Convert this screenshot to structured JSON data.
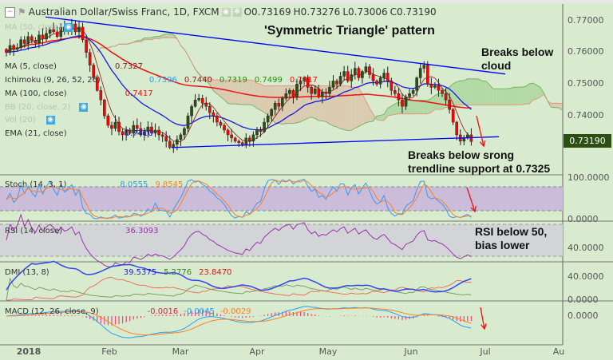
{
  "header": {
    "symbol": "Australian Dollar/Swiss Franc, 1D, FXCM",
    "open": "O0.73169",
    "high": "H0.73276",
    "low": "L0.73006",
    "close": "C0.73190"
  },
  "legends": {
    "ma50": "MA (50, close)",
    "ma5": {
      "label": "MA (5, close)",
      "value": "0.7327"
    },
    "ichimoku": {
      "label": "Ichimoku (9, 26, 52, 26)",
      "values": [
        "0.7396",
        "0.7440",
        "0.7319",
        "0.7499",
        "0.7417"
      ]
    },
    "ma100": {
      "label": "MA (100, close)",
      "value": "0.7417"
    },
    "bb": "BB (20, close, 2)",
    "vol": "Vol (20)",
    "ema21": {
      "label": "EMA (21, close)",
      "value": "0.7410"
    },
    "stoch": {
      "label": "Stoch (14, 3, 1)",
      "values": [
        "8.0555",
        "9.8545"
      ]
    },
    "rsi": {
      "label": "RSI (14, close)",
      "value": "36.3093"
    },
    "dmi": {
      "label": "DMI (13, 8)",
      "values": [
        "39.5375",
        "5.2776",
        "23.8470"
      ]
    },
    "macd": {
      "label": "MACD (12, 26, close, 9)",
      "values": [
        "-0.0016",
        "-0.0045",
        "-0.0029"
      ]
    }
  },
  "annotations": {
    "title": "'Symmetric Triangle' pattern",
    "cloud": [
      "Breaks below",
      "cloud"
    ],
    "trendline": [
      "Breaks below srong",
      "trendline support at 0.7325"
    ],
    "rsi": [
      "RSI below 50,",
      "bias lower"
    ]
  },
  "price_axis": [
    "0.77000",
    "0.76000",
    "0.75000",
    "0.74000"
  ],
  "current_price": "0.73190",
  "pane_axes": {
    "stoch": [
      "100.0000",
      "0.0000"
    ],
    "rsi": [
      "40.0000"
    ],
    "dmi": [
      "40.0000",
      "0.0000"
    ],
    "macd": [
      "0.0000"
    ]
  },
  "time_axis": [
    "2018",
    "Feb",
    "Mar",
    "Apr",
    "May",
    "Jun",
    "Jul",
    "Au"
  ],
  "colors": {
    "background": "#d9ebcf",
    "up": "#2d4f14",
    "down": "#ff0000",
    "trendline": "#0000ff",
    "ema21": "#1a1ae6",
    "ma100": "#ee1111",
    "ma5": "#8b1a1a",
    "cloud_bull": "#a9d59a",
    "cloud_bear": "#d9c3a9",
    "stoch_k": "#3399ff",
    "stoch_d": "#ff7f27",
    "rsi": "#9933aa",
    "price_tag": "#2d4f14"
  },
  "chart_data": {
    "type": "candlestick",
    "interval": "1D",
    "ylim": [
      0.7265,
      0.7775
    ],
    "closes": [
      0.76,
      0.7622,
      0.761,
      0.7615,
      0.764,
      0.7628,
      0.765,
      0.7638,
      0.763,
      0.7655,
      0.7642,
      0.766,
      0.7672,
      0.7665,
      0.765,
      0.768,
      0.7668,
      0.7675,
      0.769,
      0.7665,
      0.768,
      0.764,
      0.76,
      0.756,
      0.752,
      0.748,
      0.745,
      0.74,
      0.737,
      0.736,
      0.738,
      0.735,
      0.734,
      0.7355,
      0.7345,
      0.737,
      0.736,
      0.734,
      0.735,
      0.7365,
      0.7345,
      0.7355,
      0.734,
      0.7335,
      0.732,
      0.73,
      0.731,
      0.7325,
      0.734,
      0.736,
      0.74,
      0.743,
      0.745,
      0.7455,
      0.744,
      0.743,
      0.741,
      0.74,
      0.738,
      0.737,
      0.7355,
      0.734,
      0.733,
      0.732,
      0.7315,
      0.731,
      0.733,
      0.732,
      0.734,
      0.7355,
      0.735,
      0.738,
      0.74,
      0.742,
      0.744,
      0.743,
      0.7455,
      0.747,
      0.748,
      0.746,
      0.75,
      0.751,
      0.752,
      0.749,
      0.747,
      0.7485,
      0.746,
      0.7475,
      0.747,
      0.749,
      0.751,
      0.75,
      0.7525,
      0.754,
      0.751,
      0.753,
      0.755,
      0.752,
      0.754,
      0.7555,
      0.753,
      0.751,
      0.75,
      0.752,
      0.7535,
      0.751,
      0.748,
      0.747,
      0.745,
      0.743,
      0.746,
      0.747,
      0.748,
      0.752,
      0.755,
      0.756,
      0.75,
      0.749,
      0.7495,
      0.748,
      0.747,
      0.745,
      0.742,
      0.738,
      0.734,
      0.732,
      0.733,
      0.734,
      0.7319
    ],
    "trendlines": [
      {
        "name": "upper",
        "from": 0.7712,
        "to": 0.7532
      },
      {
        "name": "lower",
        "from": 0.73,
        "to": 0.7334
      }
    ],
    "support_level": 0.7325
  }
}
